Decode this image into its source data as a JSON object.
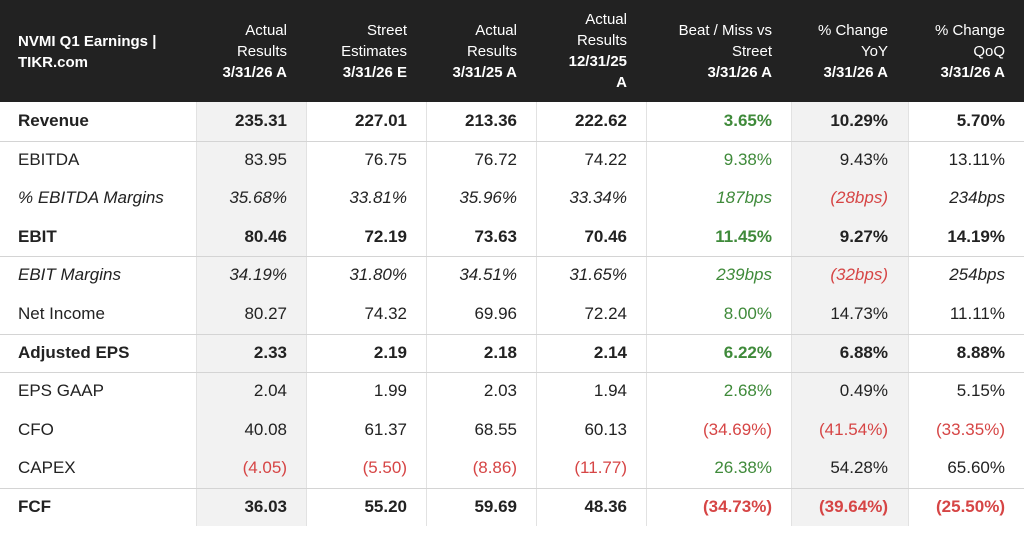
{
  "header": {
    "title_line1": "NVMI Q1 Earnings |",
    "title_line2": "TIKR.com",
    "columns": [
      {
        "l1": "Actual",
        "l2": "Results",
        "l3": "3/31/26 A",
        "l4": ""
      },
      {
        "l1": "Street",
        "l2": "Estimates",
        "l3": "3/31/26 E",
        "l4": ""
      },
      {
        "l1": "Actual",
        "l2": "Results",
        "l3": "3/31/25 A",
        "l4": ""
      },
      {
        "l1": "Actual",
        "l2": "Results",
        "l3": "12/31/25",
        "l4": "A"
      },
      {
        "l1": "Beat / Miss vs",
        "l2": "Street",
        "l3": "3/31/26 A",
        "l4": ""
      },
      {
        "l1": "% Change",
        "l2": "YoY",
        "l3": "3/31/26 A",
        "l4": ""
      },
      {
        "l1": "% Change",
        "l2": "QoQ",
        "l3": "3/31/26 A",
        "l4": ""
      }
    ]
  },
  "rows": [
    {
      "label": "Revenue",
      "style": "bold",
      "values": [
        "235.31",
        "227.01",
        "213.36",
        "222.62",
        "3.65%",
        "10.29%",
        "5.70%"
      ],
      "colors": [
        "",
        "",
        "",
        "",
        "pos",
        "",
        ""
      ]
    },
    {
      "label": "EBITDA",
      "style": "",
      "values": [
        "83.95",
        "76.75",
        "76.72",
        "74.22",
        "9.38%",
        "9.43%",
        "13.11%"
      ],
      "colors": [
        "",
        "",
        "",
        "",
        "pos",
        "",
        ""
      ]
    },
    {
      "label": "% EBITDA Margins",
      "style": "ital",
      "values": [
        "35.68%",
        "33.81%",
        "35.96%",
        "33.34%",
        "187bps",
        "(28bps)",
        "234bps"
      ],
      "colors": [
        "",
        "",
        "",
        "",
        "pos",
        "neg",
        ""
      ]
    },
    {
      "label": "EBIT",
      "style": "bold",
      "values": [
        "80.46",
        "72.19",
        "73.63",
        "70.46",
        "11.45%",
        "9.27%",
        "14.19%"
      ],
      "colors": [
        "",
        "",
        "",
        "",
        "pos",
        "",
        ""
      ]
    },
    {
      "label": "EBIT Margins",
      "style": "ital",
      "values": [
        "34.19%",
        "31.80%",
        "34.51%",
        "31.65%",
        "239bps",
        "(32bps)",
        "254bps"
      ],
      "colors": [
        "",
        "",
        "",
        "",
        "pos",
        "neg",
        ""
      ]
    },
    {
      "label": "Net Income",
      "style": "",
      "values": [
        "80.27",
        "74.32",
        "69.96",
        "72.24",
        "8.00%",
        "14.73%",
        "11.11%"
      ],
      "colors": [
        "",
        "",
        "",
        "",
        "pos",
        "",
        ""
      ]
    },
    {
      "label": "Adjusted EPS",
      "style": "bold",
      "values": [
        "2.33",
        "2.19",
        "2.18",
        "2.14",
        "6.22%",
        "6.88%",
        "8.88%"
      ],
      "colors": [
        "",
        "",
        "",
        "",
        "pos",
        "",
        ""
      ]
    },
    {
      "label": "EPS GAAP",
      "style": "",
      "values": [
        "2.04",
        "1.99",
        "2.03",
        "1.94",
        "2.68%",
        "0.49%",
        "5.15%"
      ],
      "colors": [
        "",
        "",
        "",
        "",
        "pos",
        "",
        ""
      ]
    },
    {
      "label": "CFO",
      "style": "",
      "values": [
        "40.08",
        "61.37",
        "68.55",
        "60.13",
        "(34.69%)",
        "(41.54%)",
        "(33.35%)"
      ],
      "colors": [
        "",
        "",
        "",
        "",
        "neg",
        "neg",
        "neg"
      ]
    },
    {
      "label": "CAPEX",
      "style": "",
      "values": [
        "(4.05)",
        "(5.50)",
        "(8.86)",
        "(11.77)",
        "26.38%",
        "54.28%",
        "65.60%"
      ],
      "colors": [
        "neg",
        "neg",
        "neg",
        "neg",
        "pos",
        "",
        ""
      ]
    },
    {
      "label": "FCF",
      "style": "bold",
      "values": [
        "36.03",
        "55.20",
        "59.69",
        "48.36",
        "(34.73%)",
        "(39.64%)",
        "(25.50%)"
      ],
      "colors": [
        "",
        "",
        "",
        "",
        "neg",
        "neg",
        "neg"
      ]
    }
  ],
  "colors": {
    "header_bg": "#222222",
    "positive": "#3f8a3a",
    "negative": "#d64545",
    "shaded_column": "#f2f2f2"
  }
}
